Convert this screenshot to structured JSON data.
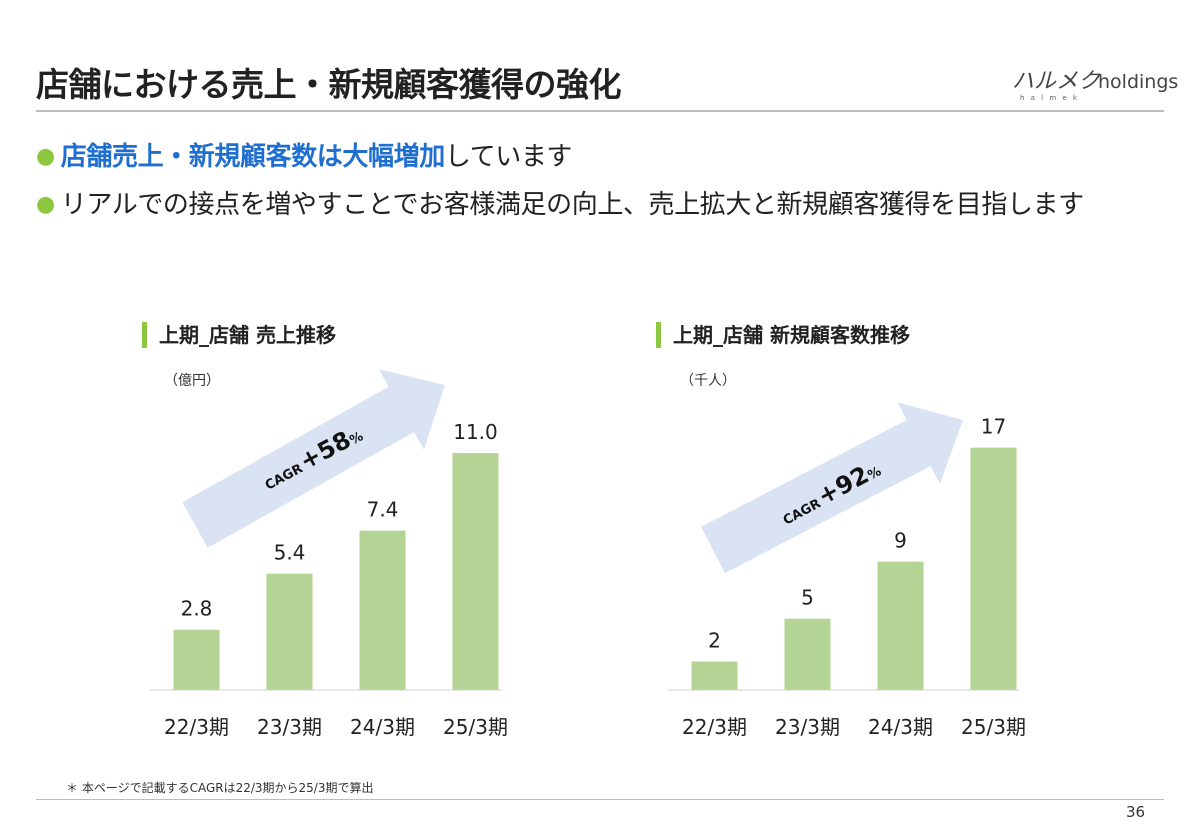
{
  "page": {
    "title": "店舗における売上・新規顧客獲得の強化",
    "bullets": [
      {
        "highlight": "店舗売上・新規顧客数は大幅増加",
        "rest": "しています"
      },
      {
        "highlight": "",
        "rest": "リアルでの接点を増やすことでお客様満足の向上、売上拡大と新規顧客獲得を目指します"
      }
    ],
    "footnote": "＊ 本ページで記載するCAGRは22/3期から25/3期で算出",
    "page_number": "36"
  },
  "logo": {
    "main": "ハルメク",
    "suffix": "holdings",
    "sub": "h a l m e k"
  },
  "colors": {
    "accent_green": "#8dc63f",
    "bar_green": "#b3d495",
    "highlight_blue": "#1f6fd1",
    "arrow_blue": "#dae3f3"
  },
  "chart_data": [
    {
      "type": "bar",
      "title": "上期_店舗 売上推移",
      "unit_label": "（億円）",
      "categories": [
        "22/3期",
        "23/3期",
        "24/3期",
        "25/3期"
      ],
      "values": [
        2.8,
        5.4,
        7.4,
        11.0
      ],
      "value_labels": [
        "2.8",
        "5.4",
        "7.4",
        "11.0"
      ],
      "ylim": [
        0,
        13
      ],
      "cagr": {
        "prefix": "CAGR",
        "value": "+58",
        "suffix": "%"
      }
    },
    {
      "type": "bar",
      "title": "上期_店舗 新規顧客数推移",
      "unit_label": "（千人）",
      "categories": [
        "22/3期",
        "23/3期",
        "24/3期",
        "25/3期"
      ],
      "values": [
        2,
        5,
        9,
        17
      ],
      "value_labels": [
        "2",
        "5",
        "9",
        "17"
      ],
      "ylim": [
        0,
        19.5
      ],
      "cagr": {
        "prefix": "CAGR",
        "value": "+92",
        "suffix": "%"
      }
    }
  ]
}
